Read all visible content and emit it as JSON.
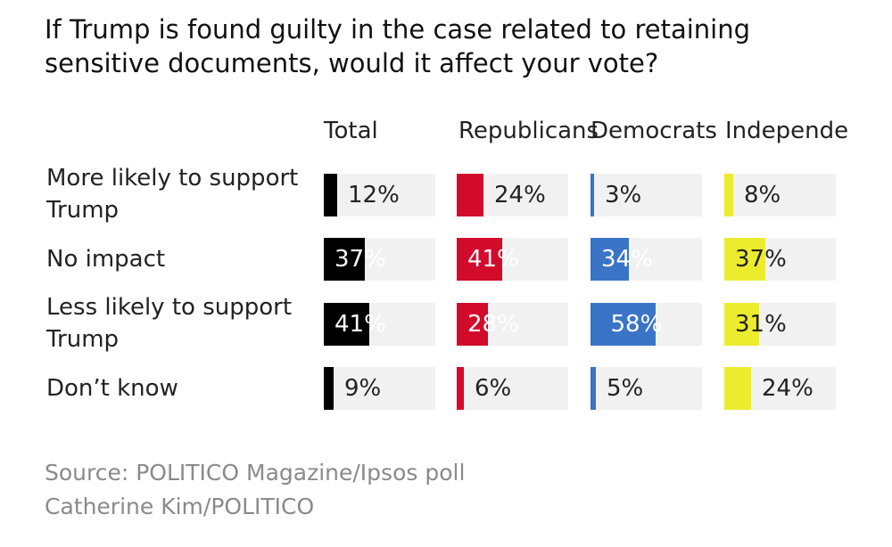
{
  "title": {
    "line1": "If Trump is found guilty in the case related to retaining",
    "line2": "sensitive documents, would it affect your vote?"
  },
  "chart_data": {
    "type": "bar",
    "title": "If Trump is found guilty in the case related to retaining sensitive documents, would it affect your vote?",
    "columns": [
      {
        "name": "Total",
        "color": "#000000"
      },
      {
        "name": "Republicans",
        "color": "#d20a2c"
      },
      {
        "name": "Democrats",
        "color": "#3a74c7"
      },
      {
        "name": "Independents",
        "color": "#ecec2e"
      }
    ],
    "header_display": [
      "Total",
      "Republicans",
      "Democrats",
      "Independe"
    ],
    "rows": [
      {
        "label_lines": [
          "More likely to support",
          "Trump"
        ],
        "values": [
          12,
          24,
          3,
          8
        ],
        "labels": [
          "12%",
          "24%",
          "3%",
          "8%"
        ]
      },
      {
        "label_lines": [
          "No impact"
        ],
        "values": [
          37,
          41,
          34,
          37
        ],
        "labels": [
          "37%",
          "41%",
          "34%",
          "37%"
        ]
      },
      {
        "label_lines": [
          "Less likely to support",
          "Trump"
        ],
        "values": [
          41,
          28,
          58,
          31
        ],
        "labels": [
          "41%",
          "28%",
          "58%",
          "31%"
        ]
      },
      {
        "label_lines": [
          "Don’t know"
        ],
        "values": [
          9,
          6,
          5,
          24
        ],
        "labels": [
          "9%",
          "6%",
          "5%",
          "24%"
        ]
      }
    ],
    "value_max": 100
  },
  "footer": {
    "source": "Source: POLITICO Magazine/Ipsos poll",
    "credit": "Catherine Kim/POLITICO"
  }
}
